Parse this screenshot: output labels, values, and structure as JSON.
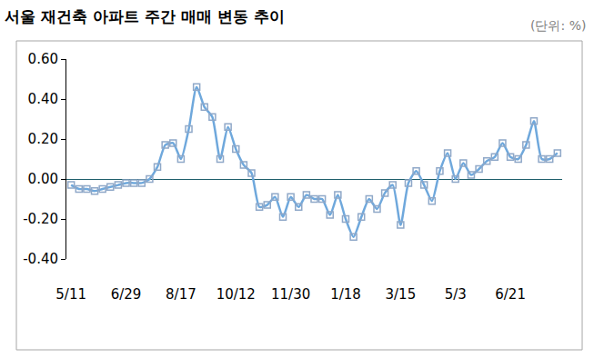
{
  "chart_data": {
    "type": "line",
    "title": "서울 재건축 아파트 주간 매매 변동 추이",
    "subtitle": "(단위: %)",
    "categories": [
      "5/11",
      null,
      null,
      null,
      null,
      null,
      null,
      "6/29",
      null,
      null,
      null,
      null,
      null,
      null,
      "8/17",
      null,
      null,
      null,
      null,
      null,
      null,
      "10/12",
      null,
      null,
      null,
      null,
      null,
      null,
      "11/30",
      null,
      null,
      null,
      null,
      null,
      null,
      "1/18",
      null,
      null,
      null,
      null,
      null,
      null,
      "3/15",
      null,
      null,
      null,
      null,
      null,
      null,
      "5/3",
      null,
      null,
      null,
      null,
      null,
      null,
      "6/21",
      null,
      null,
      null,
      null,
      null,
      null
    ],
    "values": [
      -0.03,
      -0.05,
      -0.05,
      -0.06,
      -0.05,
      -0.04,
      -0.03,
      -0.02,
      -0.02,
      -0.02,
      0.0,
      0.06,
      0.17,
      0.18,
      0.1,
      0.25,
      0.46,
      0.36,
      0.31,
      0.1,
      0.26,
      0.15,
      0.07,
      0.03,
      -0.14,
      -0.13,
      -0.09,
      -0.19,
      -0.09,
      -0.14,
      -0.08,
      -0.1,
      -0.1,
      -0.18,
      -0.08,
      -0.2,
      -0.29,
      -0.19,
      -0.1,
      -0.15,
      -0.07,
      -0.03,
      -0.23,
      -0.02,
      0.04,
      -0.03,
      -0.11,
      0.04,
      0.13,
      0.0,
      0.08,
      0.02,
      0.05,
      0.09,
      0.11,
      0.18,
      0.11,
      0.1,
      0.17,
      0.29,
      0.1,
      0.1,
      0.13
    ],
    "color": "#6fa8dc",
    "marker": "square-open",
    "line_style": "smooth",
    "ylim": [
      -0.4,
      0.6
    ],
    "yticks": [
      {
        "value": -0.4,
        "label": "-0.40"
      },
      {
        "value": -0.2,
        "label": "-0.20"
      },
      {
        "value": 0,
        "label": "0.00"
      },
      {
        "value": 0.2,
        "label": "0.20"
      },
      {
        "value": 0.4,
        "label": "0.40"
      },
      {
        "value": 0.6,
        "label": "0.60"
      }
    ],
    "grid": false
  }
}
